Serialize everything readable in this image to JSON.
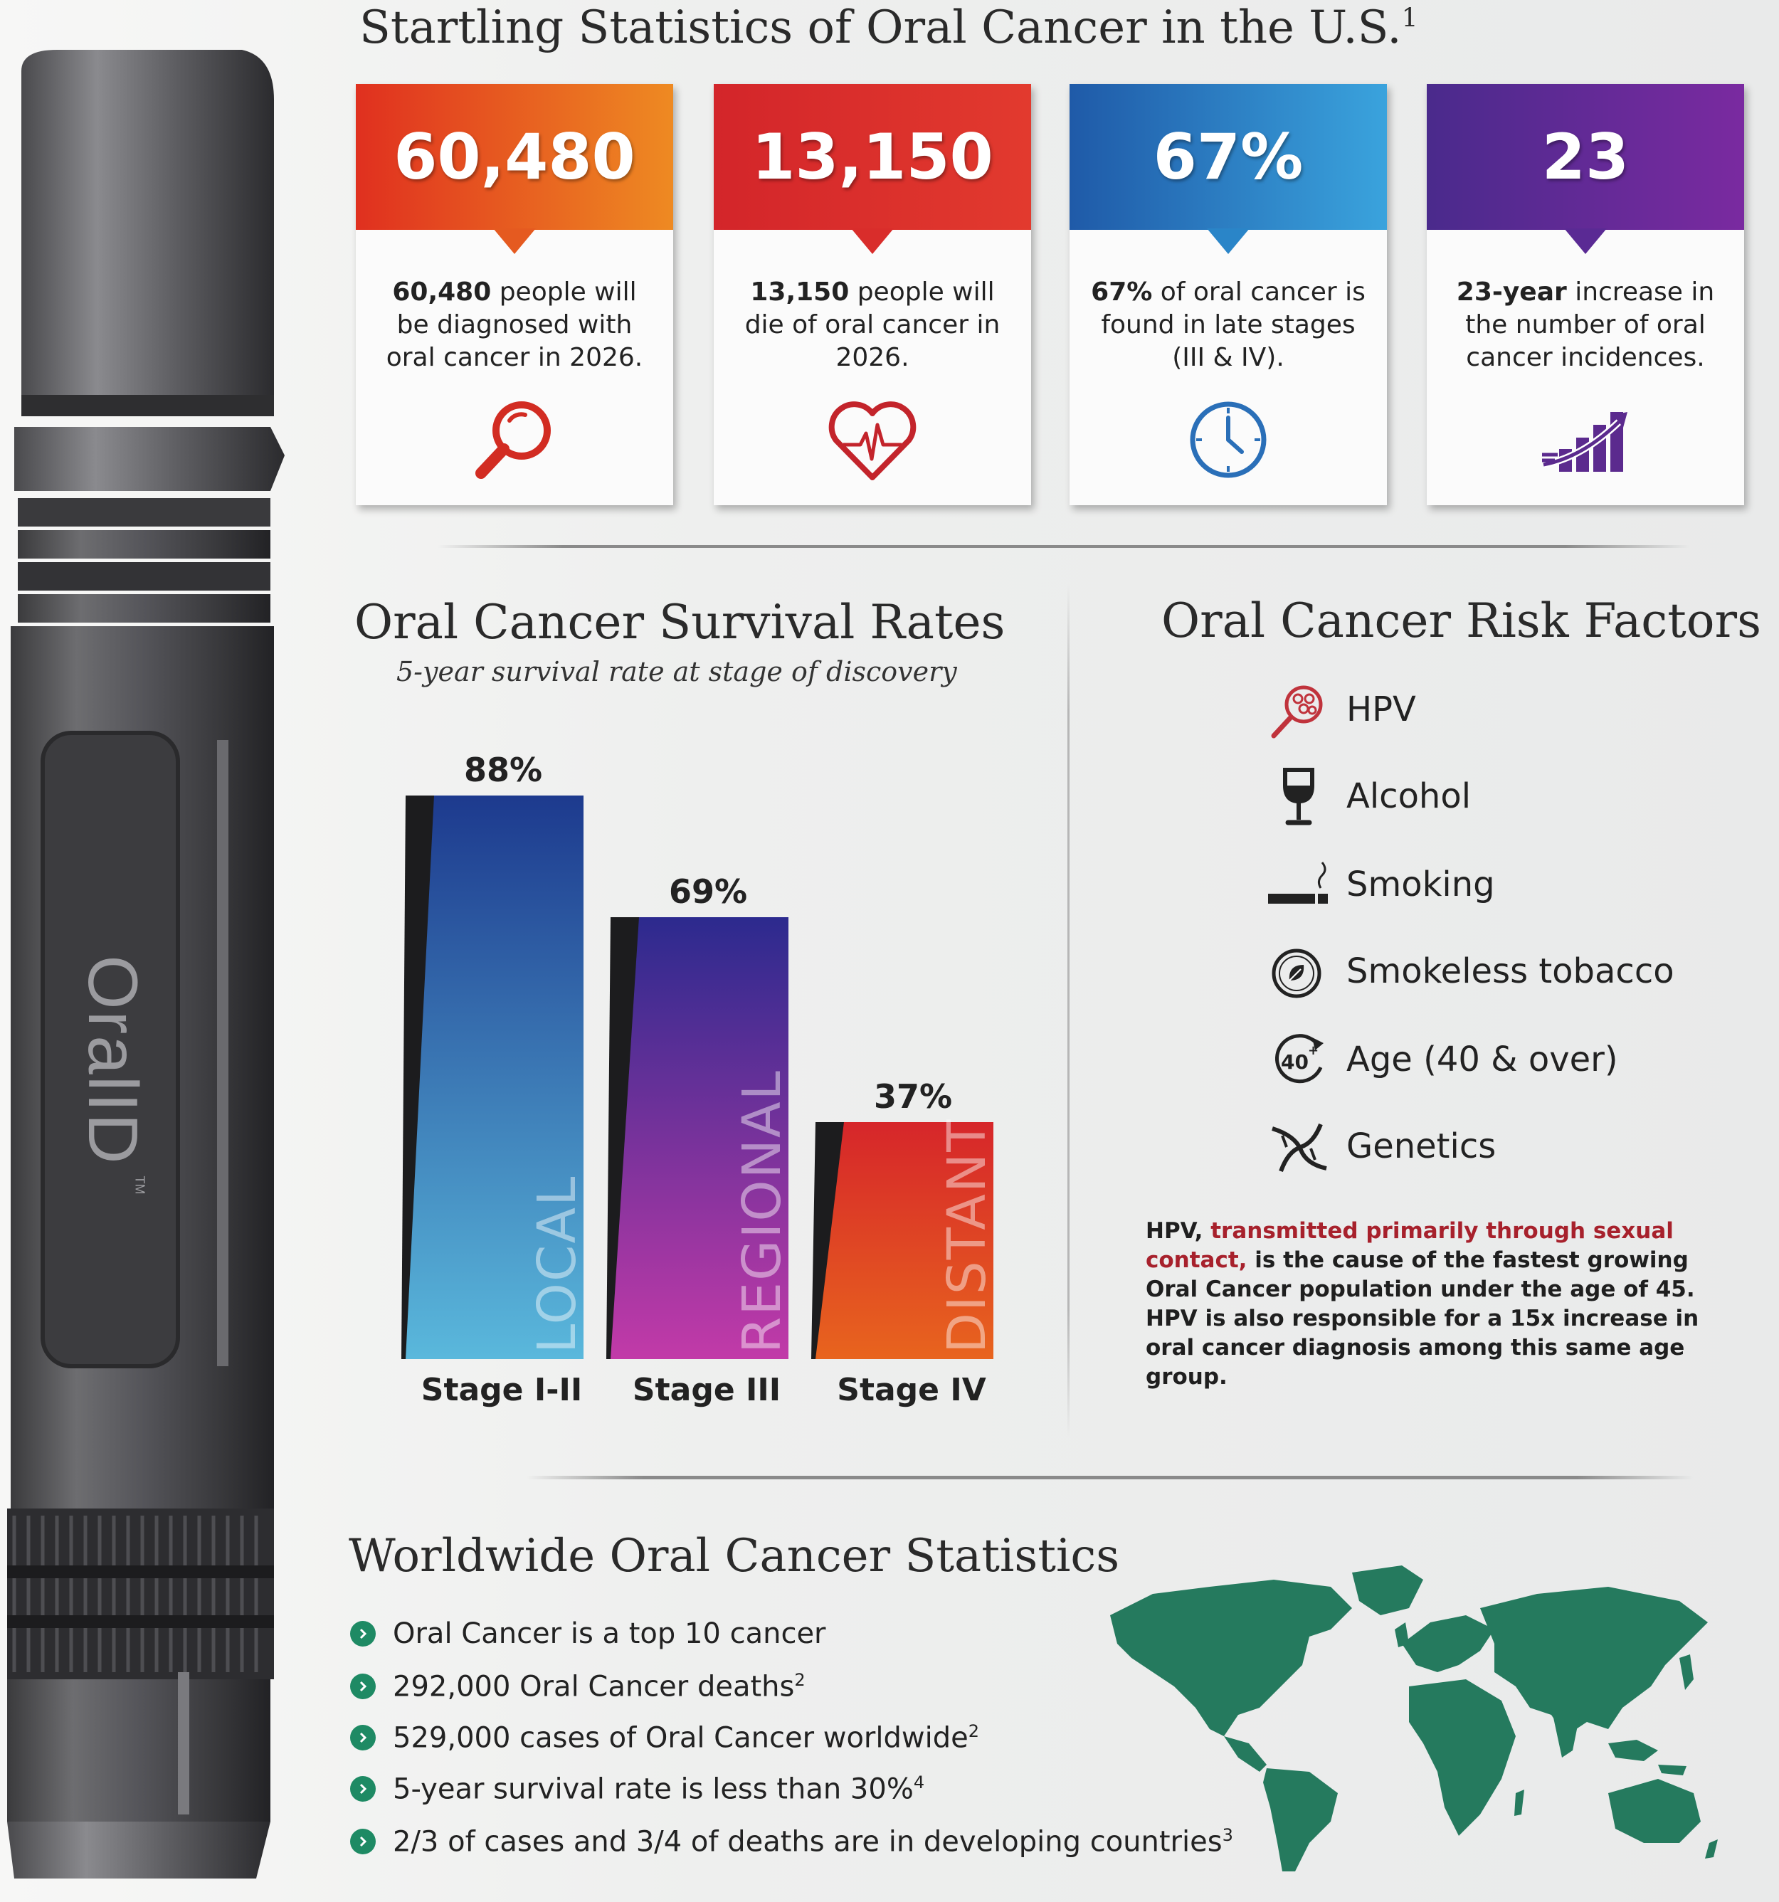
{
  "brand": {
    "device_label": "OralID",
    "device_trademark": "TM"
  },
  "us_stats": {
    "title": "Startling Statistics of Oral Cancer in the U.S.",
    "title_footnote": "1",
    "cards": [
      {
        "value": "60,480",
        "desc_bold": "60,480",
        "desc_rest": " people will be diagnosed with oral cancer in 2026.",
        "icon": "magnifier-icon",
        "color_start": "#e0301f",
        "color_end": "#ee8a22"
      },
      {
        "value": "13,150",
        "desc_bold": "13,150",
        "desc_rest": " people will die of oral cancer in 2026.",
        "icon": "heart-pulse-icon",
        "color_start": "#d3252a",
        "color_end": "#e23a2e"
      },
      {
        "value": "67%",
        "desc_bold": "67%",
        "desc_rest": " of oral cancer is found in late stages (III & IV).",
        "icon": "clock-icon",
        "color_start": "#1f5aa8",
        "color_end": "#3aa3dd"
      },
      {
        "value": "23",
        "desc_bold": "23-year",
        "desc_rest": " increase in the number of oral cancer incidences.",
        "icon": "growth-chart-icon",
        "color_start": "#4a2a8c",
        "color_end": "#7a2aa0"
      }
    ]
  },
  "survival": {
    "title": "Oral Cancer Survival Rates",
    "subtitle": "5-year survival rate at stage of discovery"
  },
  "chart_data": {
    "type": "bar",
    "title": "Oral Cancer Survival Rates",
    "subtitle": "5-year survival rate at stage of discovery",
    "categories": [
      "Stage I-II",
      "Stage III",
      "Stage IV"
    ],
    "values": [
      88,
      69,
      37
    ],
    "value_labels": [
      "88%",
      "69%",
      "37%"
    ],
    "bar_text": [
      "LOCAL",
      "REGIONAL",
      "DISTANT"
    ],
    "unit": "%",
    "ylim": [
      0,
      100
    ],
    "grid": false,
    "colors": [
      [
        "#1d3a8e",
        "#5ab8dc"
      ],
      [
        "#2c2a8e",
        "#c23aa8"
      ],
      [
        "#d6262a",
        "#e8641e"
      ]
    ]
  },
  "risk": {
    "title": "Oral Cancer Risk Factors",
    "items": [
      {
        "label": "HPV",
        "icon": "virus-icon"
      },
      {
        "label": "Alcohol",
        "icon": "wine-glass-icon"
      },
      {
        "label": "Smoking",
        "icon": "cigarette-icon"
      },
      {
        "label": "Smokeless tobacco",
        "icon": "tobacco-tin-icon"
      },
      {
        "label": "Age (40 & over)",
        "icon": "age-40-icon"
      },
      {
        "label": "Genetics",
        "icon": "dna-icon"
      }
    ],
    "note_lead": "HPV, ",
    "note_highlight": "transmitted primarily through sexual contact,",
    "note_rest": " is the cause of the fastest growing Oral Cancer population under the age of 45. HPV is also responsible for a 15x increase in oral cancer diagnosis among this same age group.",
    "highlight_color": "#a7212c"
  },
  "worldwide": {
    "title": "Worldwide Oral Cancer Statistics",
    "items": [
      {
        "text": "Oral Cancer is a top 10 cancer",
        "sup": ""
      },
      {
        "text": "292,000 Oral Cancer deaths",
        "sup": "2"
      },
      {
        "text": "529,000 cases of Oral Cancer worldwide",
        "sup": "2"
      },
      {
        "text": "5-year survival rate is less than 30%",
        "sup": "4"
      },
      {
        "text": "2/3 of cases and 3/4 of deaths are in developing countries",
        "sup": "3"
      }
    ],
    "map_color": "#257a5e",
    "bullet_color": "#1e8a64"
  }
}
